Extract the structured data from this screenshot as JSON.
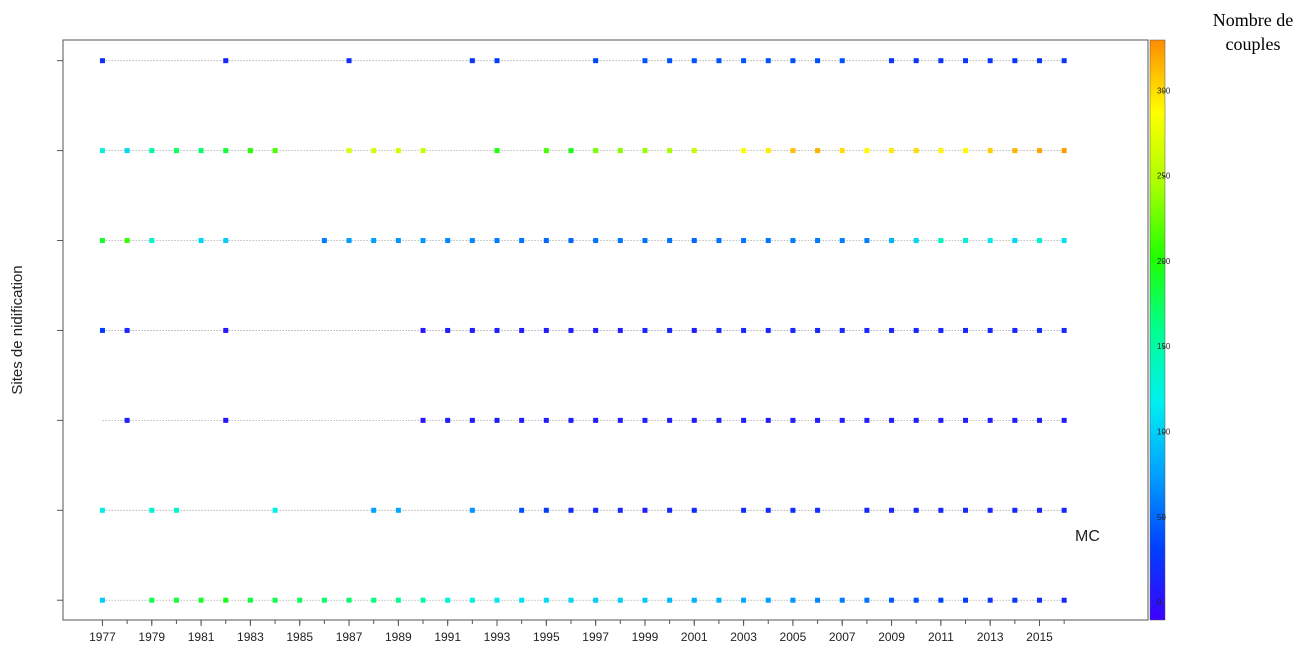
{
  "chart_data": {
    "type": "dot-matrix",
    "y_label": "Sites de nidification",
    "annotation": "MC",
    "colorbar_title": [
      "Nombre de",
      "couples"
    ],
    "x": [
      1977,
      1978,
      1979,
      1980,
      1981,
      1982,
      1983,
      1984,
      1985,
      1986,
      1987,
      1988,
      1989,
      1990,
      1991,
      1992,
      1993,
      1994,
      1995,
      1996,
      1997,
      1998,
      1999,
      2000,
      2001,
      2002,
      2003,
      2004,
      2005,
      2006,
      2007,
      2008,
      2009,
      2010,
      2011,
      2012,
      2013,
      2014,
      2015,
      2016
    ],
    "xlim": [
      1975.4,
      2019.4
    ],
    "xticks": [
      1977,
      1979,
      1981,
      1983,
      1985,
      1987,
      1989,
      1991,
      1993,
      1995,
      1997,
      1999,
      2001,
      2003,
      2005,
      2007,
      2009,
      2011,
      2013,
      2015
    ],
    "ylim": [
      0.78,
      7.23
    ],
    "yticks": [
      1,
      2,
      3,
      4,
      5,
      6,
      7
    ],
    "clim": [
      -10,
      330
    ],
    "cticks": [
      0,
      50,
      100,
      150,
      200,
      250,
      300
    ],
    "colormap": [
      "#3c00ff",
      "#0040ff",
      "#00a0ff",
      "#00f0f0",
      "#00ff90",
      "#20ff00",
      "#a8ff00",
      "#ffff00",
      "#ff8c00"
    ],
    "series": [
      {
        "y": 1,
        "values": [
          100,
          null,
          180,
          185,
          190,
          195,
          185,
          180,
          175,
          170,
          170,
          165,
          160,
          145,
          130,
          125,
          115,
          110,
          108,
          105,
          100,
          100,
          95,
          90,
          85,
          85,
          80,
          75,
          70,
          65,
          60,
          55,
          45,
          40,
          35,
          30,
          25,
          25,
          20,
          15
        ]
      },
      {
        "y": 2,
        "values": [
          120,
          null,
          130,
          135,
          null,
          null,
          null,
          120,
          null,
          null,
          null,
          75,
          80,
          null,
          null,
          70,
          null,
          40,
          30,
          20,
          15,
          15,
          10,
          15,
          20,
          null,
          20,
          20,
          20,
          20,
          null,
          15,
          15,
          15,
          15,
          15,
          15,
          15,
          15,
          15
        ]
      },
      {
        "y": 3,
        "values": [
          null,
          10,
          null,
          null,
          null,
          5,
          null,
          null,
          null,
          null,
          null,
          null,
          null,
          5,
          10,
          10,
          10,
          10,
          10,
          10,
          10,
          10,
          10,
          10,
          10,
          10,
          10,
          10,
          10,
          10,
          10,
          10,
          10,
          10,
          10,
          10,
          10,
          10,
          10,
          10
        ]
      },
      {
        "y": 4,
        "values": [
          30,
          15,
          null,
          null,
          null,
          5,
          null,
          null,
          null,
          null,
          null,
          null,
          null,
          5,
          10,
          10,
          10,
          10,
          10,
          10,
          10,
          10,
          15,
          15,
          10,
          15,
          15,
          15,
          15,
          15,
          15,
          15,
          15,
          15,
          15,
          15,
          15,
          15,
          20,
          15
        ]
      },
      {
        "y": 5,
        "values": [
          190,
          210,
          135,
          null,
          105,
          100,
          null,
          null,
          null,
          60,
          75,
          75,
          70,
          70,
          65,
          65,
          60,
          55,
          50,
          50,
          55,
          55,
          55,
          55,
          50,
          55,
          55,
          55,
          60,
          60,
          60,
          60,
          85,
          105,
          140,
          130,
          115,
          105,
          130,
          110
        ]
      },
      {
        "y": 6,
        "values": [
          130,
          105,
          150,
          175,
          170,
          185,
          205,
          215,
          null,
          null,
          270,
          265,
          265,
          260,
          null,
          null,
          200,
          null,
          215,
          195,
          230,
          235,
          240,
          245,
          260,
          null,
          285,
          295,
          310,
          315,
          300,
          290,
          295,
          300,
          290,
          290,
          305,
          315,
          320,
          325
        ]
      },
      {
        "y": 7,
        "values": [
          20,
          null,
          null,
          null,
          null,
          15,
          null,
          null,
          null,
          null,
          20,
          null,
          null,
          null,
          null,
          25,
          30,
          null,
          null,
          null,
          35,
          null,
          40,
          40,
          40,
          40,
          40,
          40,
          40,
          40,
          40,
          null,
          25,
          25,
          25,
          25,
          25,
          25,
          25,
          25
        ]
      }
    ]
  }
}
